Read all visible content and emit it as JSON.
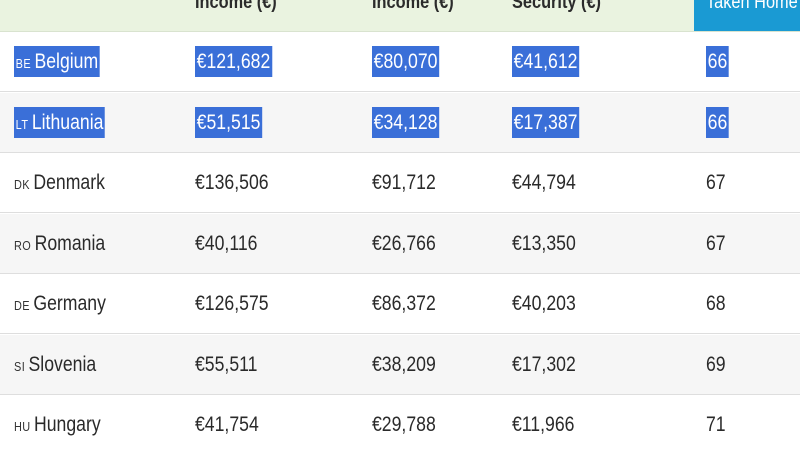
{
  "header": {
    "columns": [
      {
        "label": "Income (€)"
      },
      {
        "label": "Income (€)"
      },
      {
        "label": "Security (€)"
      },
      {
        "label": "Taken Home"
      }
    ]
  },
  "rows": [
    {
      "code": "BE",
      "country": "Belgium",
      "income_gross": "€121,682",
      "income_net": "€80,070",
      "security": "€41,612",
      "taken_home": "66",
      "selected": true
    },
    {
      "code": "LT",
      "country": "Lithuania",
      "income_gross": "€51,515",
      "income_net": "€34,128",
      "security": "€17,387",
      "taken_home": "66",
      "selected": true
    },
    {
      "code": "DK",
      "country": "Denmark",
      "income_gross": "€136,506",
      "income_net": "€91,712",
      "security": "€44,794",
      "taken_home": "67",
      "selected": false
    },
    {
      "code": "RO",
      "country": "Romania",
      "income_gross": "€40,116",
      "income_net": "€26,766",
      "security": "€13,350",
      "taken_home": "67",
      "selected": false
    },
    {
      "code": "DE",
      "country": "Germany",
      "income_gross": "€126,575",
      "income_net": "€86,372",
      "security": "€40,203",
      "taken_home": "68",
      "selected": false
    },
    {
      "code": "SI",
      "country": "Slovenia",
      "income_gross": "€55,511",
      "income_net": "€38,209",
      "security": "€17,302",
      "taken_home": "69",
      "selected": false
    },
    {
      "code": "HU",
      "country": "Hungary",
      "income_gross": "€41,754",
      "income_net": "€29,788",
      "security": "€11,966",
      "taken_home": "71",
      "selected": false
    }
  ],
  "colors": {
    "header_background": "#eaf3e0",
    "header_accent": "#1a9ad3",
    "selection_highlight": "#3a6fd8"
  }
}
